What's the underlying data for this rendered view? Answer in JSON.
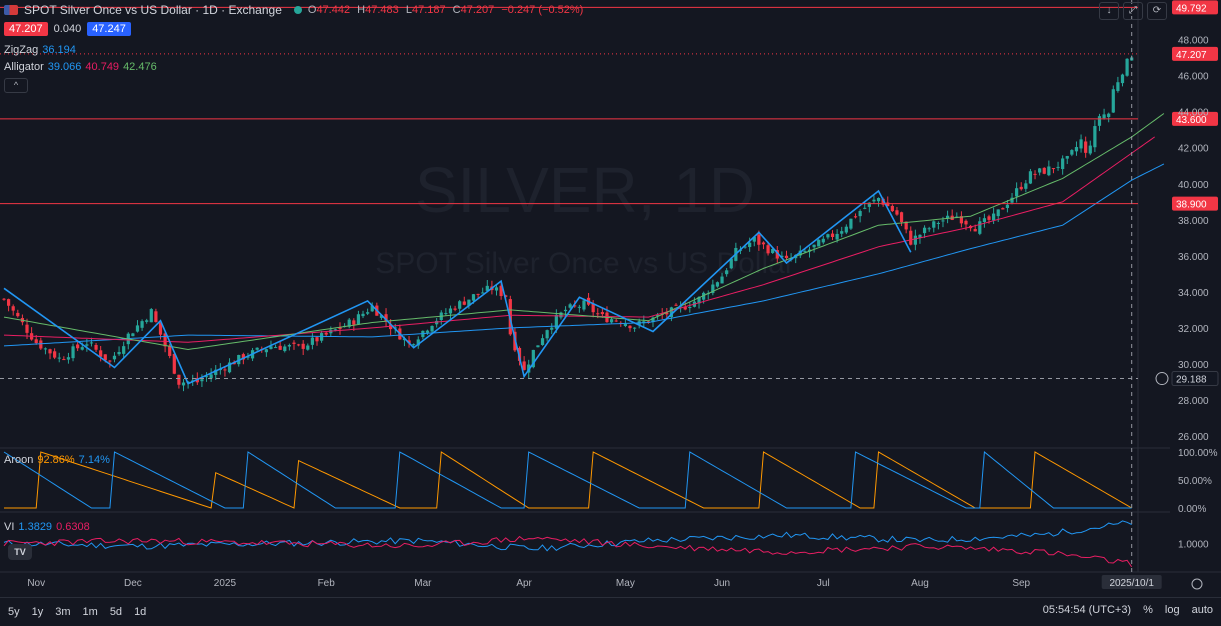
{
  "header": {
    "title": "SPOT Silver Once vs US Dollar · 1D · Exchange",
    "ohlc": [
      {
        "k": "O",
        "v": "47.442"
      },
      {
        "k": "H",
        "v": "47.483"
      },
      {
        "k": "L",
        "v": "47.187"
      },
      {
        "k": "C",
        "v": "47.207"
      },
      {
        "k": "",
        "v": "−0.247 (−0.52%)"
      }
    ]
  },
  "pricebox": {
    "bid": "47.207",
    "spread": "0.040",
    "ask": "47.247"
  },
  "indicators": {
    "zigzag": {
      "name": "ZigZag",
      "value": "36.194"
    },
    "alligator": {
      "name": "Alligator",
      "v1": "39.066",
      "v2": "40.749",
      "v3": "42.476"
    },
    "aroon": {
      "name": "Aroon",
      "up": "92.86%",
      "down": "7.14%"
    },
    "vi": {
      "name": "VI",
      "plus": "1.3829",
      "minus": "0.6308"
    }
  },
  "watermark": {
    "symbol": "SILVER, 1D",
    "desc": "SPOT Silver Once vs US Dollar"
  },
  "colors": {
    "up": "#26a69a",
    "down": "#f23645",
    "zigzag": "#2196f3",
    "jaw": "#2196f3",
    "teeth": "#e91e63",
    "lips": "#66bb6a",
    "aroon_up": "#ff9800",
    "aroon_down": "#2196f3",
    "vi_plus": "#2196f3",
    "vi_minus": "#e91e63",
    "hline": "#f23645"
  },
  "chart_data": {
    "type": "candlestick",
    "price_ylim": [
      25.5,
      50.2
    ],
    "price_ticks": [
      "48.000",
      "46.000",
      "44.000",
      "42.000",
      "40.000",
      "38.000",
      "36.000",
      "34.000",
      "32.000",
      "30.000",
      "28.000",
      "26.000"
    ],
    "price_tick_values": [
      48,
      46,
      44,
      42,
      40,
      38,
      36,
      34,
      32,
      30,
      28,
      26
    ],
    "horizontal_levels": [
      {
        "value": 49.792,
        "label": "49.792"
      },
      {
        "value": 43.6,
        "label": "43.600"
      },
      {
        "value": 38.9,
        "label": "38.900"
      }
    ],
    "last_price": {
      "value": 47.207,
      "label": "47.207"
    },
    "crosshair": {
      "value": 29.188,
      "label": "29.188",
      "date": "2025/10/1"
    },
    "x_labels": [
      "Nov",
      "Dec",
      "2025",
      "Feb",
      "Mar",
      "Apr",
      "May",
      "Jun",
      "Jul",
      "Aug",
      "Sep"
    ],
    "x_label_index": [
      7,
      28,
      48,
      70,
      91,
      113,
      135,
      156,
      178,
      199,
      221
    ],
    "candle_count": 246,
    "close_path": [
      [
        0,
        33.6
      ],
      [
        7,
        31.2
      ],
      [
        12,
        30.3
      ],
      [
        18,
        31.2
      ],
      [
        23,
        30.1
      ],
      [
        27,
        31.6
      ],
      [
        32,
        32.9
      ],
      [
        35,
        31.0
      ],
      [
        38,
        29.0
      ],
      [
        42,
        29.0
      ],
      [
        46,
        29.6
      ],
      [
        52,
        30.4
      ],
      [
        58,
        31.0
      ],
      [
        64,
        30.9
      ],
      [
        70,
        31.6
      ],
      [
        76,
        32.4
      ],
      [
        80,
        33.2
      ],
      [
        84,
        32.1
      ],
      [
        88,
        31.1
      ],
      [
        93,
        32.3
      ],
      [
        98,
        33.2
      ],
      [
        103,
        33.9
      ],
      [
        106,
        34.2
      ],
      [
        109,
        33.8
      ],
      [
        110,
        31.7
      ],
      [
        113,
        29.6
      ],
      [
        115,
        30.7
      ],
      [
        118,
        32.0
      ],
      [
        122,
        33.0
      ],
      [
        126,
        33.3
      ],
      [
        130,
        32.6
      ],
      [
        134,
        32.4
      ],
      [
        137,
        32.1
      ],
      [
        142,
        32.6
      ],
      [
        147,
        33.1
      ],
      [
        151,
        33.6
      ],
      [
        156,
        34.9
      ],
      [
        159,
        36.2
      ],
      [
        163,
        36.9
      ],
      [
        167,
        36.2
      ],
      [
        170,
        35.7
      ],
      [
        174,
        36.2
      ],
      [
        178,
        36.8
      ],
      [
        182,
        37.5
      ],
      [
        186,
        38.5
      ],
      [
        190,
        39.2
      ],
      [
        194,
        38.3
      ],
      [
        197,
        36.8
      ],
      [
        199,
        37.2
      ],
      [
        203,
        37.9
      ],
      [
        207,
        38.2
      ],
      [
        211,
        37.6
      ],
      [
        215,
        38.1
      ],
      [
        219,
        39.3
      ],
      [
        223,
        40.5
      ],
      [
        227,
        40.8
      ],
      [
        231,
        41.3
      ],
      [
        234,
        42.4
      ],
      [
        235,
        41.6
      ],
      [
        237,
        43.0
      ],
      [
        238,
        43.8
      ],
      [
        240,
        43.9
      ],
      [
        241,
        45.2
      ],
      [
        243,
        46.3
      ],
      [
        244,
        46.7
      ],
      [
        245,
        47.2
      ]
    ],
    "zigzag_points": [
      [
        0,
        34.2
      ],
      [
        24,
        29.8
      ],
      [
        34,
        32.4
      ],
      [
        40,
        28.9
      ],
      [
        79,
        33.5
      ],
      [
        89,
        30.9
      ],
      [
        108,
        34.6
      ],
      [
        113,
        29.3
      ],
      [
        125,
        33.7
      ],
      [
        141,
        31.8
      ],
      [
        164,
        37.3
      ],
      [
        170,
        35.6
      ],
      [
        190,
        39.6
      ],
      [
        197,
        36.2
      ]
    ],
    "alligator_anchors": {
      "jaw": [
        [
          0,
          31.0
        ],
        [
          40,
          31.6
        ],
        [
          80,
          31.5
        ],
        [
          110,
          32.0
        ],
        [
          140,
          32.3
        ],
        [
          165,
          33.5
        ],
        [
          190,
          35.0
        ],
        [
          210,
          36.4
        ],
        [
          230,
          37.7
        ],
        [
          245,
          40.2
        ],
        [
          252,
          41.1
        ]
      ],
      "teeth": [
        [
          0,
          31.6
        ],
        [
          40,
          31.2
        ],
        [
          80,
          32.0
        ],
        [
          110,
          32.7
        ],
        [
          140,
          32.6
        ],
        [
          165,
          34.4
        ],
        [
          190,
          36.5
        ],
        [
          210,
          37.6
        ],
        [
          230,
          39.0
        ],
        [
          245,
          41.7
        ],
        [
          250,
          42.6
        ]
      ],
      "lips": [
        [
          0,
          32.6
        ],
        [
          40,
          30.8
        ],
        [
          80,
          32.3
        ],
        [
          110,
          33.0
        ],
        [
          140,
          32.4
        ],
        [
          165,
          35.3
        ],
        [
          190,
          37.7
        ],
        [
          210,
          38.2
        ],
        [
          230,
          40.3
        ],
        [
          245,
          42.6
        ],
        [
          252,
          43.9
        ]
      ]
    },
    "aroon": {
      "ylim": [
        0,
        100
      ],
      "ticks": [
        "100.00%",
        "50.00%",
        "0.00%"
      ],
      "tick_values": [
        100,
        50,
        0
      ],
      "up_cycles": [
        [
          8,
          45
        ],
        [
          36,
          63
        ],
        [
          60,
          86
        ],
        [
          95,
          114
        ],
        [
          128,
          152
        ],
        [
          165,
          186
        ],
        [
          190,
          211
        ],
        [
          224,
          245
        ]
      ],
      "down_cycles": [
        [
          0,
          19
        ],
        [
          24,
          48
        ],
        [
          53,
          72
        ],
        [
          86,
          108
        ],
        [
          114,
          138
        ],
        [
          149,
          170
        ],
        [
          185,
          209
        ],
        [
          213,
          228
        ]
      ]
    },
    "vi": {
      "ylim": [
        0.55,
        1.5
      ],
      "ticks": [
        "1.0000"
      ],
      "tick_values": [
        1.0
      ],
      "plus_anchors": [
        [
          0,
          1.0
        ],
        [
          30,
          0.95
        ],
        [
          60,
          1.0
        ],
        [
          90,
          1.05
        ],
        [
          115,
          0.9
        ],
        [
          140,
          1.05
        ],
        [
          170,
          1.15
        ],
        [
          200,
          1.05
        ],
        [
          225,
          1.15
        ],
        [
          245,
          1.38
        ]
      ],
      "minus_anchors": [
        [
          0,
          1.0
        ],
        [
          30,
          1.05
        ],
        [
          60,
          1.0
        ],
        [
          90,
          0.95
        ],
        [
          115,
          1.1
        ],
        [
          140,
          0.95
        ],
        [
          170,
          0.85
        ],
        [
          200,
          0.95
        ],
        [
          225,
          0.85
        ],
        [
          245,
          0.63
        ]
      ]
    }
  },
  "toolbar": {
    "ranges": [
      "5y",
      "1y",
      "3m",
      "1m",
      "5d",
      "1d"
    ],
    "time": "05:54:54 (UTC+3)",
    "percent": "%",
    "log": "log",
    "auto": "auto"
  },
  "logo_text": "TV"
}
